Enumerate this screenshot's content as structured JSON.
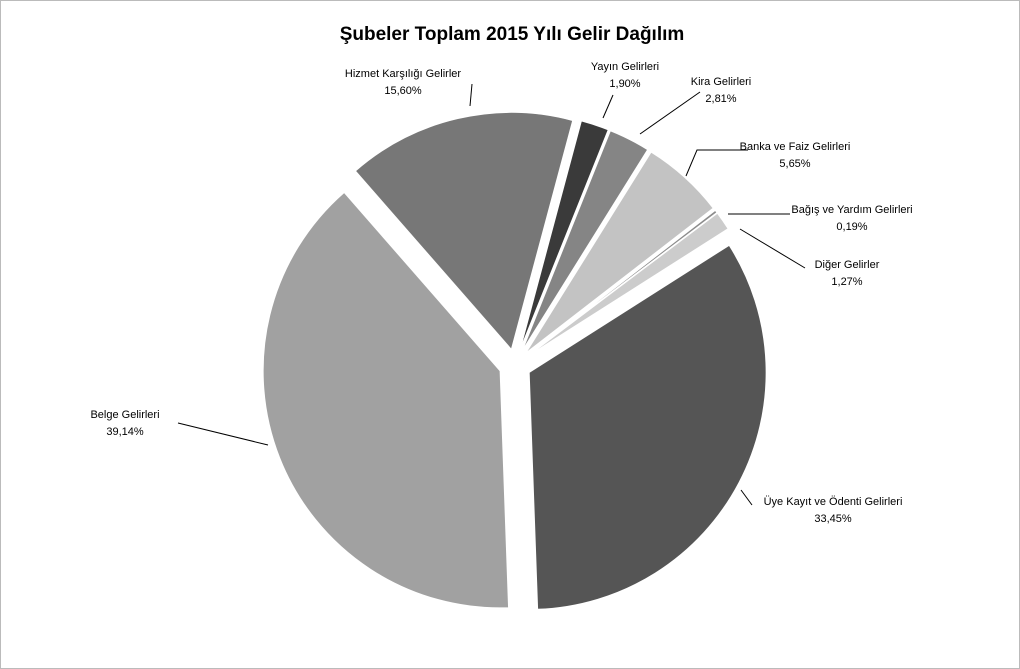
{
  "chart_data": {
    "type": "pie",
    "title": "Şubeler Toplam 2015 Yılı Gelir Dağılım",
    "categories": [
      "Yayın Gelirleri",
      "Kira Gelirleri",
      "Banka ve Faiz Gelirleri",
      "Bağış ve Yardım Gelirleri",
      "Diğer Gelirler",
      "Üye Kayıt ve Ödenti Gelirleri",
      "Belge Gelirleri",
      "Hizmet Karşılığı Gelirler"
    ],
    "values": [
      1.9,
      2.81,
      5.65,
      0.19,
      1.27,
      33.45,
      39.14,
      15.6
    ],
    "value_labels": [
      "1,90%",
      "2,81%",
      "5,65%",
      "0,19%",
      "1,27%",
      "33,45%",
      "39,14%",
      "15,60%"
    ],
    "colors": [
      "#3a3a3a",
      "#858585",
      "#c3c3c3",
      "#8c8c8c",
      "#cccccc",
      "#555555",
      "#a1a1a1",
      "#777777"
    ]
  }
}
